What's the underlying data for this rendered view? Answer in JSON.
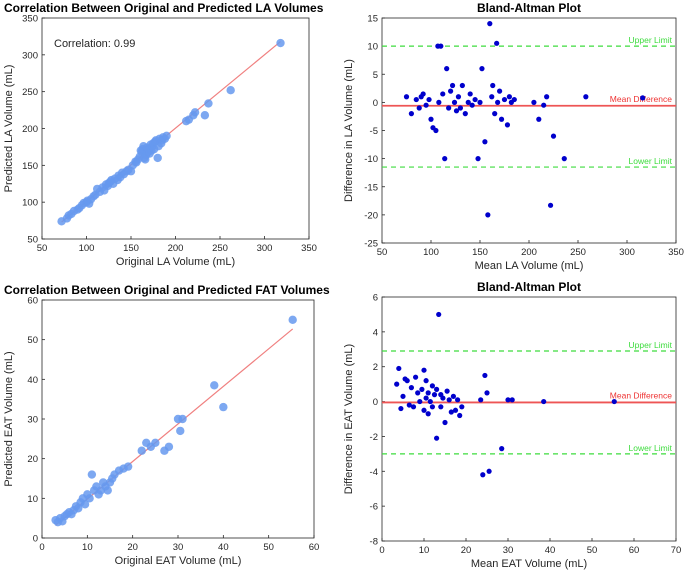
{
  "chart_data": [
    {
      "type": "scatter",
      "title": "Correlation Between Original and Predicted LA Volumes",
      "xlabel": "Original LA Volume (mL)",
      "ylabel": "Predicted LA Volume (mL)",
      "xlim": [
        50,
        350
      ],
      "ylim": [
        50,
        350
      ],
      "xticks": [
        50,
        100,
        150,
        200,
        250,
        300,
        350
      ],
      "yticks": [
        50,
        100,
        150,
        200,
        250,
        300,
        350
      ],
      "annotation": "Correlation: 0.99",
      "point_color": "#6699ee",
      "fit_color": "#f08080",
      "fit_line": {
        "x": [
          72,
          318
        ],
        "y": [
          73,
          318
        ]
      },
      "points": {
        "x": [
          72,
          78,
          80,
          83,
          86,
          90,
          92,
          95,
          97,
          100,
          101,
          103,
          105,
          108,
          110,
          112,
          115,
          118,
          120,
          122,
          124,
          125,
          127,
          128,
          130,
          132,
          135,
          136,
          138,
          140,
          142,
          145,
          147,
          150,
          152,
          155,
          156,
          158,
          160,
          161,
          162,
          163,
          164,
          165,
          166,
          167,
          168,
          169,
          170,
          171,
          172,
          173,
          174,
          175,
          176,
          177,
          178,
          180,
          181,
          182,
          184,
          185,
          186,
          188,
          190,
          212,
          215,
          220,
          222,
          233,
          237,
          262,
          318
        ],
        "y": [
          74,
          78,
          82,
          84,
          88,
          90,
          92,
          96,
          99,
          100,
          102,
          98,
          104,
          108,
          110,
          118,
          114,
          120,
          116,
          124,
          122,
          126,
          128,
          130,
          125,
          132,
          130,
          136,
          134,
          140,
          138,
          142,
          144,
          142,
          150,
          155,
          154,
          158,
          162,
          170,
          168,
          172,
          176,
          160,
          158,
          164,
          174,
          168,
          172,
          166,
          178,
          170,
          176,
          180,
          172,
          182,
          184,
          160,
          176,
          186,
          180,
          184,
          188,
          186,
          190,
          210,
          212,
          218,
          222,
          218,
          234,
          252,
          316
        ]
      }
    },
    {
      "type": "scatter",
      "title": "Bland-Altman Plot",
      "xlabel": "Mean LA Volume (mL)",
      "ylabel": "Difference in LA Volume (mL)",
      "xlim": [
        50,
        350
      ],
      "ylim": [
        -25,
        15
      ],
      "xticks": [
        50,
        100,
        150,
        200,
        250,
        300,
        350
      ],
      "yticks": [
        -25,
        -20,
        -15,
        -10,
        -5,
        0,
        5,
        10,
        15
      ],
      "point_color": "#0000cc",
      "mean_difference": -0.6,
      "upper_limit": 10.0,
      "lower_limit": -11.5,
      "mean_label": "Mean Difference",
      "upper_label": "Upper Limit",
      "lower_label": "Lower Limit",
      "points": {
        "x": [
          75,
          80,
          85,
          88,
          90,
          92,
          95,
          98,
          100,
          102,
          105,
          107,
          108,
          110,
          112,
          114,
          116,
          118,
          120,
          122,
          124,
          126,
          128,
          130,
          132,
          135,
          138,
          140,
          142,
          145,
          148,
          150,
          152,
          155,
          158,
          160,
          162,
          163,
          165,
          167,
          168,
          170,
          172,
          175,
          178,
          180,
          182,
          185,
          205,
          210,
          215,
          218,
          222,
          225,
          236,
          258,
          316
        ],
        "y": [
          1,
          -2,
          0.5,
          -1,
          1,
          1.5,
          -0.5,
          0.5,
          -3,
          -4.5,
          -5,
          10,
          0,
          10,
          1.5,
          -10,
          6,
          -1,
          2,
          3,
          0,
          -1.5,
          1,
          -1,
          3,
          -2,
          0,
          1.5,
          -0.5,
          0.5,
          -10,
          0,
          6,
          -7,
          -20,
          14,
          1,
          3,
          -2,
          10.5,
          0,
          2,
          -3,
          0.5,
          -4,
          1,
          0,
          0.5,
          0,
          -3,
          -0.5,
          1,
          -18.3,
          -6,
          -10,
          1,
          0.8
        ]
      }
    },
    {
      "type": "scatter",
      "title": "Correlation Between Original and Predicted FAT Volumes",
      "xlabel": "Original EAT Volume (mL)",
      "ylabel": "Predicted EAT Volume (mL)",
      "xlim": [
        0,
        60
      ],
      "ylim": [
        0,
        60
      ],
      "xticks": [
        0,
        10,
        20,
        30,
        40,
        50,
        60
      ],
      "yticks": [
        0,
        10,
        20,
        30,
        40,
        50,
        60
      ],
      "point_color": "#6699ee",
      "fit_color": "#f08080",
      "fit_line": {
        "x": [
          3,
          55.3
        ],
        "y": [
          3.2,
          52.7
        ]
      },
      "points": {
        "x": [
          3,
          3.5,
          4,
          4.5,
          5,
          5.5,
          6,
          6.5,
          7,
          7.5,
          8,
          8.5,
          9,
          9.5,
          10,
          10.5,
          11,
          11.5,
          12,
          12.5,
          13,
          13.5,
          14,
          14.5,
          15,
          15.5,
          16,
          17,
          18,
          19,
          22,
          23,
          24,
          25,
          27,
          28,
          30,
          30.5,
          31,
          38,
          40,
          55.3
        ],
        "y": [
          4.5,
          4,
          5,
          4.2,
          5.5,
          6,
          6.5,
          6,
          7,
          8,
          7.5,
          9,
          10,
          8.5,
          11,
          10,
          16,
          12,
          13,
          11,
          12,
          14,
          13,
          12,
          14,
          15,
          16,
          17,
          17.5,
          18,
          22,
          24,
          23,
          24,
          22,
          23,
          30,
          27,
          30,
          38.5,
          33,
          55
        ]
      }
    },
    {
      "type": "scatter",
      "title": "Bland-Altman Plot",
      "xlabel": "Mean EAT Volume (mL)",
      "ylabel": "Difference in EAT Volume (mL)",
      "xlim": [
        0,
        70
      ],
      "ylim": [
        -8,
        6
      ],
      "xticks": [
        0,
        10,
        20,
        30,
        40,
        50,
        60,
        70
      ],
      "yticks": [
        -8,
        -6,
        -4,
        -2,
        0,
        2,
        4,
        6
      ],
      "point_color": "#0000cc",
      "mean_difference": -0.05,
      "upper_limit": 2.9,
      "lower_limit": -3.0,
      "mean_label": "Mean Difference",
      "upper_label": "Upper Limit",
      "lower_label": "Lower Limit",
      "points": {
        "x": [
          3.5,
          4,
          4.5,
          5,
          5.5,
          6,
          6.5,
          7,
          7.5,
          8,
          8.5,
          9,
          9.5,
          10,
          10,
          10.5,
          10.5,
          11,
          11,
          11.5,
          12,
          12,
          12.5,
          13,
          13,
          13.5,
          14,
          14,
          14.5,
          15,
          15.5,
          16,
          16.5,
          17,
          17.5,
          18,
          18.5,
          19,
          23.5,
          24,
          24.5,
          25,
          25.5,
          28.5,
          30,
          31,
          38.5,
          55.3
        ],
        "y": [
          1,
          1.9,
          -0.4,
          0.3,
          1.3,
          1.2,
          -0.2,
          0.8,
          -0.3,
          1.4,
          0.5,
          0,
          0.7,
          1.8,
          -0.5,
          1.2,
          0.2,
          0.5,
          -0.7,
          0,
          0.9,
          -0.3,
          0.4,
          -2.1,
          0.7,
          5,
          0.4,
          -0.3,
          0.2,
          -1.2,
          0.6,
          0.1,
          -0.6,
          0.3,
          -0.5,
          0.1,
          -0.8,
          -0.3,
          0.1,
          -4.2,
          1.5,
          0.5,
          -4,
          -2.7,
          0.1,
          0.1,
          0,
          0
        ]
      }
    }
  ]
}
